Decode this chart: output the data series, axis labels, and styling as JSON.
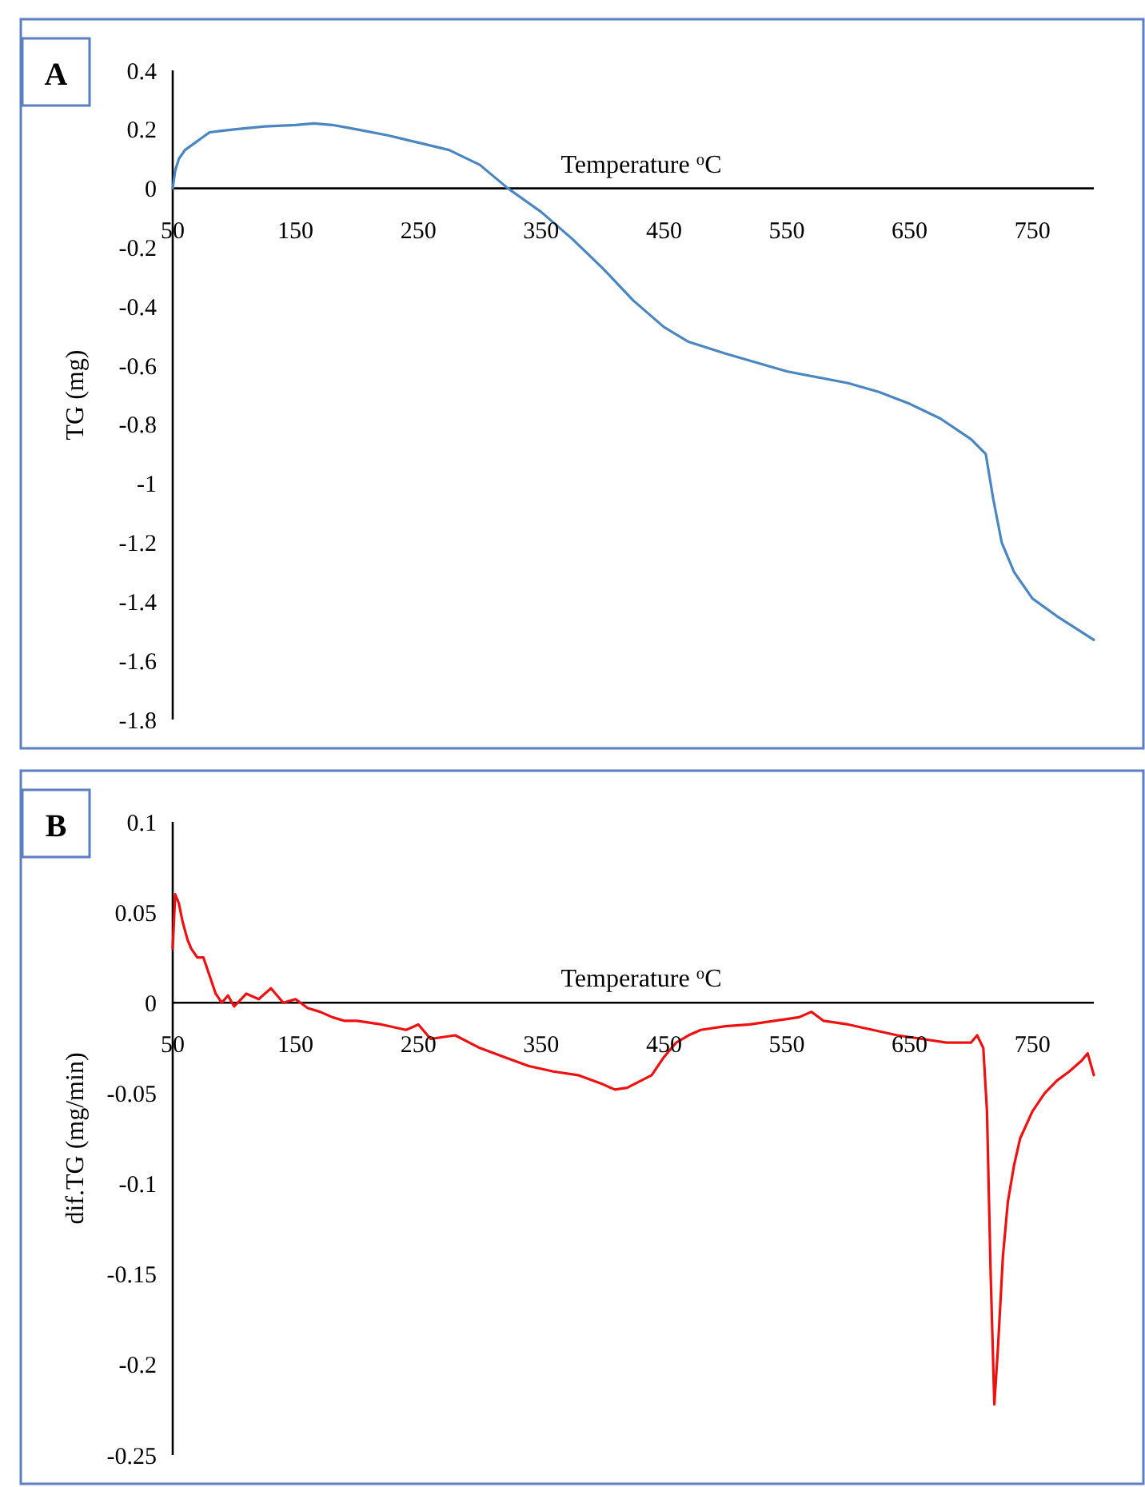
{
  "chart_data": [
    {
      "type": "line",
      "annotations": [
        "A"
      ],
      "xlabel": "Temperature $^{o}$C",
      "ylabel": "TG (mg)",
      "xlim": [
        50,
        800
      ],
      "ylim": [
        -1.8,
        0.4
      ],
      "xticks": [
        50,
        150,
        250,
        350,
        450,
        550,
        650,
        750
      ],
      "yticks": [
        0.4,
        0.2,
        0,
        -0.2,
        -0.4,
        -0.6,
        -0.8,
        -1,
        -1.2,
        -1.4,
        -1.6,
        -1.8
      ],
      "grid": false,
      "marker": "none",
      "line_style": "solid",
      "series": [
        {
          "color": "#4a86c0",
          "x": [
            50,
            52,
            55,
            60,
            70,
            80,
            90,
            100,
            125,
            150,
            165,
            180,
            200,
            225,
            250,
            275,
            300,
            323,
            350,
            375,
            400,
            425,
            450,
            470,
            500,
            550,
            600,
            625,
            650,
            675,
            700,
            712,
            718,
            725,
            735,
            750,
            770,
            785,
            800
          ],
          "values": [
            0,
            0.06,
            0.1,
            0.13,
            0.16,
            0.19,
            0.195,
            0.2,
            0.21,
            0.215,
            0.22,
            0.215,
            0.2,
            0.18,
            0.155,
            0.13,
            0.08,
            0,
            -0.08,
            -0.17,
            -0.27,
            -0.38,
            -0.47,
            -0.52,
            -0.56,
            -0.62,
            -0.66,
            -0.69,
            -0.73,
            -0.78,
            -0.85,
            -0.9,
            -1.05,
            -1.2,
            -1.3,
            -1.39,
            -1.45,
            -1.49,
            -1.53
          ]
        }
      ]
    },
    {
      "type": "line",
      "annotations": [
        "B"
      ],
      "xlabel": "Temperature $^{o}$C",
      "ylabel": "dif.TG (mg/min)",
      "xlim": [
        50,
        800
      ],
      "ylim": [
        -0.25,
        0.1
      ],
      "xticks": [
        50,
        150,
        250,
        350,
        450,
        550,
        650,
        750
      ],
      "yticks": [
        0.1,
        0.05,
        0,
        -0.05,
        -0.1,
        -0.15,
        -0.2,
        -0.25
      ],
      "grid": false,
      "marker": "none",
      "line_style": "solid",
      "series": [
        {
          "color": "#ee1111",
          "x": [
            50,
            52,
            55,
            58,
            62,
            65,
            70,
            75,
            80,
            85,
            90,
            95,
            100,
            110,
            120,
            130,
            140,
            150,
            160,
            170,
            180,
            190,
            200,
            220,
            240,
            250,
            260,
            280,
            300,
            320,
            340,
            360,
            380,
            400,
            410,
            420,
            440,
            450,
            460,
            470,
            480,
            500,
            520,
            540,
            560,
            570,
            580,
            600,
            620,
            640,
            660,
            680,
            700,
            705,
            710,
            713,
            716,
            719,
            722,
            726,
            730,
            735,
            740,
            750,
            760,
            770,
            780,
            790,
            795,
            800
          ],
          "values": [
            0.03,
            0.06,
            0.055,
            0.045,
            0.035,
            0.03,
            0.025,
            0.025,
            0.015,
            0.005,
            0,
            0.004,
            -0.002,
            0.005,
            0.002,
            0.008,
            0,
            0.002,
            -0.003,
            -0.005,
            -0.008,
            -0.01,
            -0.01,
            -0.012,
            -0.015,
            -0.012,
            -0.02,
            -0.018,
            -0.025,
            -0.03,
            -0.035,
            -0.038,
            -0.04,
            -0.045,
            -0.048,
            -0.047,
            -0.04,
            -0.03,
            -0.022,
            -0.018,
            -0.015,
            -0.013,
            -0.012,
            -0.01,
            -0.008,
            -0.005,
            -0.01,
            -0.012,
            -0.015,
            -0.018,
            -0.02,
            -0.022,
            -0.022,
            -0.018,
            -0.025,
            -0.06,
            -0.15,
            -0.222,
            -0.19,
            -0.14,
            -0.11,
            -0.09,
            -0.075,
            -0.06,
            -0.05,
            -0.043,
            -0.038,
            -0.032,
            -0.028,
            -0.04
          ]
        }
      ]
    }
  ]
}
